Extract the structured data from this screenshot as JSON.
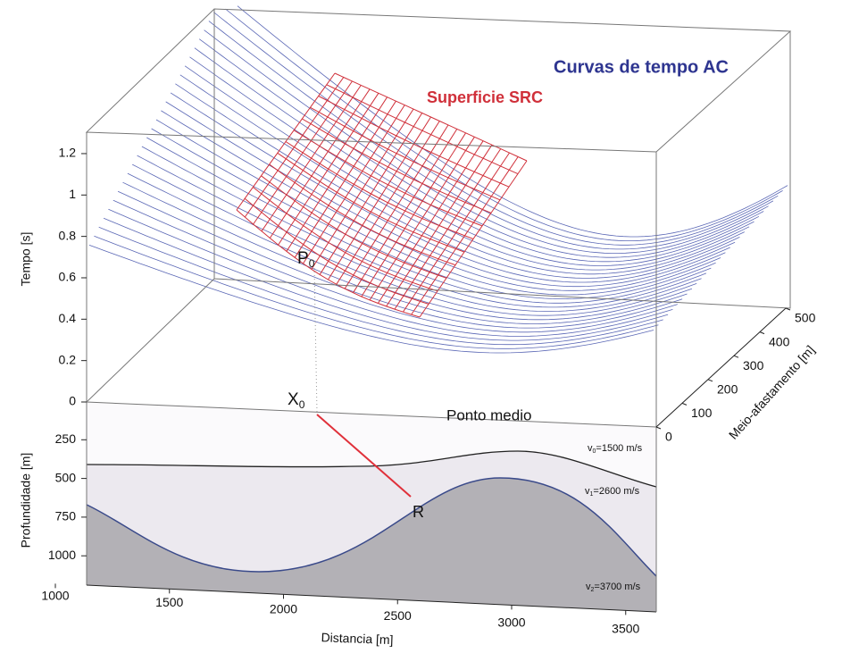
{
  "labels": {
    "curves": "Curvas de tempo AC",
    "surface": "Superficie SRC",
    "midpoint": "Ponto medio"
  },
  "points": {
    "P0": {
      "letter": "P",
      "sub": "0"
    },
    "X0": {
      "letter": "X",
      "sub": "0"
    },
    "R": "R"
  },
  "velocities": [
    {
      "letter": "v",
      "sub": "0",
      "text": "=1500 m/s"
    },
    {
      "letter": "v",
      "sub": "1",
      "text": "=2600 m/s"
    },
    {
      "letter": "v",
      "sub": "2",
      "text": "=3700 m/s"
    }
  ],
  "axes": {
    "time": {
      "label": "Tempo [s]",
      "ticks": [
        0,
        0.2,
        0.4,
        0.6,
        0.8,
        1,
        1.2
      ]
    },
    "offset": {
      "label": "Meio-afastamento [m]",
      "ticks": [
        0,
        100,
        200,
        300,
        400,
        500
      ]
    },
    "depth": {
      "label": "Profundidade [m]",
      "ticks": [
        250,
        500,
        750,
        1000
      ]
    },
    "distance": {
      "label": "Distancia [m]",
      "ticks": [
        1000,
        1500,
        2000,
        2500,
        3000,
        3500
      ]
    }
  }
}
